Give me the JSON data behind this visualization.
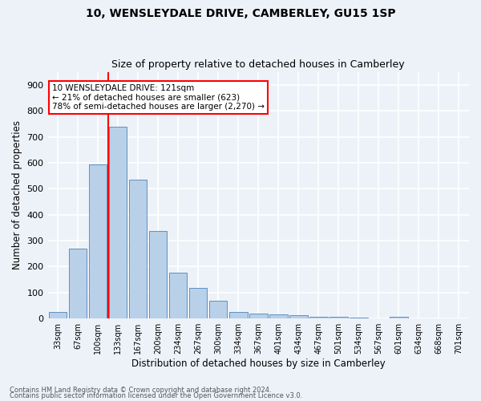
{
  "title1": "10, WENSLEYDALE DRIVE, CAMBERLEY, GU15 1SP",
  "title2": "Size of property relative to detached houses in Camberley",
  "xlabel": "Distribution of detached houses by size in Camberley",
  "ylabel": "Number of detached properties",
  "categories": [
    "33sqm",
    "67sqm",
    "100sqm",
    "133sqm",
    "167sqm",
    "200sqm",
    "234sqm",
    "267sqm",
    "300sqm",
    "334sqm",
    "367sqm",
    "401sqm",
    "434sqm",
    "467sqm",
    "501sqm",
    "534sqm",
    "567sqm",
    "601sqm",
    "634sqm",
    "668sqm",
    "701sqm"
  ],
  "values": [
    25,
    270,
    595,
    740,
    535,
    338,
    178,
    118,
    68,
    25,
    18,
    15,
    12,
    8,
    6,
    5,
    0,
    8,
    0,
    0,
    0
  ],
  "bar_color": "#b8d0e8",
  "bar_edge_color": "#6090c0",
  "vline_color": "red",
  "annotation_lines": [
    "10 WENSLEYDALE DRIVE: 121sqm",
    "← 21% of detached houses are smaller (623)",
    "78% of semi-detached houses are larger (2,270) →"
  ],
  "annotation_box_color": "white",
  "annotation_box_edge": "red",
  "ylim": [
    0,
    950
  ],
  "yticks": [
    0,
    100,
    200,
    300,
    400,
    500,
    600,
    700,
    800,
    900
  ],
  "background_color": "#edf2f9",
  "grid_color": "white",
  "footer1": "Contains HM Land Registry data © Crown copyright and database right 2024.",
  "footer2": "Contains public sector information licensed under the Open Government Licence v3.0."
}
